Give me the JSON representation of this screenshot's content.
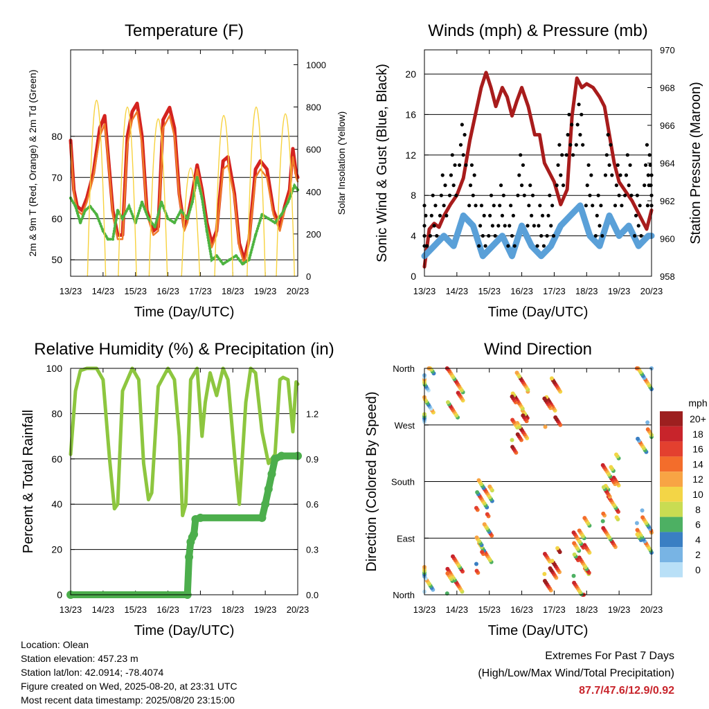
{
  "figure": {
    "time_ticks": [
      "13/23",
      "14/23",
      "15/23",
      "16/23",
      "17/23",
      "18/23",
      "19/23",
      "20/23"
    ],
    "xlabel": "Time (Day/UTC)"
  },
  "chart_data": [
    {
      "id": "temperature",
      "type": "line",
      "title": "Temperature (F)",
      "ylabel_left": "2m & 9m T (Red, Orange) & 2m Td (Green)",
      "ylabel_right": "Solar Insolation (Yellow)",
      "ylim_left": [
        46,
        101
      ],
      "ylim_right": [
        0,
        1070
      ],
      "yticks_left": [
        50,
        60,
        70,
        80
      ],
      "yticks_right": [
        0,
        200,
        400,
        600,
        800,
        1000
      ],
      "grid_left": [
        50,
        60,
        70,
        80
      ],
      "series": [
        {
          "color": "#d4231f",
          "axis": "left",
          "style": "thick",
          "x": [
            0,
            0.1,
            0.2,
            0.35,
            0.5,
            0.7,
            0.9,
            1.05,
            1.15,
            1.3,
            1.45,
            1.6,
            1.75,
            1.9,
            2.05,
            2.2,
            2.35,
            2.55,
            2.7,
            2.85,
            3.05,
            3.2,
            3.35,
            3.5,
            3.6,
            3.75,
            3.9,
            4.05,
            4.2,
            4.35,
            4.5,
            4.7,
            4.85,
            5.05,
            5.2,
            5.35,
            5.5,
            5.7,
            5.85,
            6.05,
            6.25,
            6.45,
            6.6,
            6.75,
            6.85,
            6.95,
            7.0
          ],
          "y": [
            79,
            67,
            63,
            62,
            65,
            71,
            82,
            85,
            76,
            62,
            56,
            56,
            80,
            86,
            88,
            80,
            62,
            57,
            58,
            84,
            87,
            82,
            66,
            58,
            60,
            66,
            73,
            67,
            59,
            54,
            57,
            74,
            75,
            66,
            54,
            50,
            55,
            72,
            74,
            72,
            62,
            58,
            63,
            67,
            77,
            71,
            70
          ]
        },
        {
          "color": "#f07a2a",
          "axis": "left",
          "style": "thin",
          "x": [
            0,
            0.1,
            0.2,
            0.35,
            0.5,
            0.7,
            0.9,
            1.05,
            1.15,
            1.3,
            1.45,
            1.6,
            1.75,
            1.9,
            2.05,
            2.2,
            2.35,
            2.55,
            2.7,
            2.85,
            3.05,
            3.2,
            3.35,
            3.5,
            3.6,
            3.75,
            3.9,
            4.05,
            4.2,
            4.35,
            4.5,
            4.7,
            4.85,
            5.05,
            5.2,
            5.35,
            5.5,
            5.7,
            5.85,
            6.05,
            6.25,
            6.45,
            6.6,
            6.75,
            6.85,
            6.95,
            7.0
          ],
          "y": [
            78,
            66,
            62,
            61,
            64,
            70,
            80,
            83,
            75,
            61,
            55,
            55,
            78,
            84,
            86,
            78,
            61,
            56,
            57,
            82,
            85,
            80,
            65,
            57,
            59,
            65,
            72,
            66,
            58,
            53,
            56,
            72,
            73,
            65,
            53,
            49,
            54,
            70,
            72,
            70,
            61,
            57,
            62,
            66,
            75,
            70,
            69
          ]
        },
        {
          "color": "#4db340",
          "axis": "left",
          "style": "dots",
          "x": [
            0,
            0.15,
            0.3,
            0.45,
            0.6,
            0.8,
            1.0,
            1.15,
            1.3,
            1.45,
            1.6,
            1.8,
            2.0,
            2.2,
            2.4,
            2.6,
            2.8,
            3.0,
            3.2,
            3.4,
            3.6,
            3.75,
            3.9,
            4.05,
            4.2,
            4.35,
            4.5,
            4.7,
            4.9,
            5.1,
            5.3,
            5.5,
            5.7,
            5.9,
            6.1,
            6.3,
            6.5,
            6.7,
            6.9,
            7.0
          ],
          "y": [
            65,
            63,
            59,
            62,
            63,
            61,
            57,
            55,
            55,
            62,
            60,
            63,
            59,
            64,
            60,
            58,
            64,
            60,
            59,
            62,
            60,
            64,
            70,
            65,
            57,
            50,
            51,
            49,
            50,
            51,
            49,
            50,
            56,
            61,
            60,
            59,
            61,
            64,
            68,
            67
          ]
        },
        {
          "color": "#f7d23e",
          "axis": "right",
          "style": "spikes",
          "peaks": [
            [
              0.8,
              1040
            ],
            [
              1.75,
              1000
            ],
            [
              2.7,
              930
            ],
            [
              3.7,
              640
            ],
            [
              4.72,
              950
            ],
            [
              5.72,
              1000
            ],
            [
              6.62,
              960
            ]
          ]
        }
      ]
    },
    {
      "id": "winds",
      "type": "line",
      "title": "Winds (mph) & Pressure (mb)",
      "ylabel_left": "Sonic Wind & Gust (Blue, Black)",
      "ylabel_right": "Station Pressure (Maroon)",
      "ylim_left": [
        0,
        22.4
      ],
      "ylim_right": [
        958,
        970
      ],
      "yticks_left": [
        0,
        4,
        8,
        12,
        16,
        20
      ],
      "yticks_right": [
        958,
        960,
        962,
        964,
        966,
        968,
        970
      ],
      "grid_left": [
        4,
        8,
        12,
        16,
        20
      ],
      "series": [
        {
          "color": "#a81c1c",
          "axis": "right",
          "style": "thick",
          "x": [
            0,
            0.15,
            0.3,
            0.45,
            0.6,
            0.8,
            1.0,
            1.2,
            1.4,
            1.6,
            1.75,
            1.9,
            2.05,
            2.2,
            2.4,
            2.55,
            2.7,
            2.85,
            3.0,
            3.2,
            3.4,
            3.55,
            3.7,
            3.85,
            4.0,
            4.2,
            4.4,
            4.55,
            4.7,
            4.85,
            5.0,
            5.2,
            5.4,
            5.55,
            5.7,
            5.85,
            6.0,
            6.2,
            6.4,
            6.55,
            6.7,
            6.85,
            7.0
          ],
          "y": [
            958.5,
            960.5,
            960.8,
            960.6,
            961.2,
            961.8,
            962.3,
            963.2,
            965.2,
            966.8,
            968.0,
            968.8,
            968.0,
            967.0,
            968.0,
            967.5,
            966.5,
            967.3,
            968.0,
            967.0,
            965.5,
            965.5,
            964.0,
            963.5,
            963.0,
            961.8,
            962.6,
            966.5,
            968.5,
            968.0,
            968.2,
            968.0,
            967.5,
            967.0,
            965.5,
            964.0,
            963.0,
            962.5,
            962.0,
            961.5,
            961.0,
            960.5,
            961.5
          ]
        },
        {
          "color": "#5aa0d8",
          "axis": "left",
          "style": "band",
          "x": [
            0,
            0.3,
            0.6,
            0.9,
            1.2,
            1.5,
            1.8,
            2.1,
            2.4,
            2.7,
            3.0,
            3.3,
            3.6,
            3.9,
            4.2,
            4.5,
            4.8,
            5.1,
            5.4,
            5.7,
            6.0,
            6.3,
            6.6,
            6.9,
            7.0
          ],
          "y": [
            2,
            3,
            4,
            3,
            6,
            5,
            2,
            3,
            4,
            2,
            5,
            3,
            2,
            3,
            5,
            6,
            7,
            4,
            3,
            6,
            4,
            5,
            3,
            4,
            4
          ]
        },
        {
          "color": "#000000",
          "axis": "left",
          "style": "scatter",
          "x": [
            0,
            0.3,
            0.6,
            0.9,
            1.2,
            1.5,
            1.8,
            2.1,
            2.4,
            2.7,
            3.0,
            3.3,
            3.6,
            3.9,
            4.2,
            4.5,
            4.8,
            5.1,
            5.4,
            5.7,
            6.0,
            6.3,
            6.6,
            6.9,
            7.0
          ],
          "y": [
            5,
            6,
            8,
            10,
            13,
            9,
            5,
            6,
            7,
            5,
            10,
            7,
            5,
            6,
            11,
            14,
            15,
            9,
            6,
            12,
            9,
            10,
            6,
            11,
            9
          ]
        }
      ]
    },
    {
      "id": "humidity",
      "type": "line",
      "title": "Relative Humidity (%) & Precipitation (in)",
      "ylabel_left": "Percent & Total Rainfall",
      "ylim_left": [
        0,
        100
      ],
      "ylim_right": [
        0,
        1.5
      ],
      "yticks_left": [
        0,
        20,
        40,
        60,
        80,
        100
      ],
      "yticks_right": [
        "0.0",
        "0.3",
        "0.6",
        "0.9",
        "1.2"
      ],
      "yticks_right_values": [
        0,
        0.3,
        0.6,
        0.9,
        1.2
      ],
      "grid_left": [
        20,
        40,
        60,
        80
      ],
      "series": [
        {
          "color": "#8dc63f",
          "axis": "left",
          "style": "thick",
          "x": [
            0,
            0.15,
            0.3,
            0.5,
            0.8,
            1.0,
            1.2,
            1.35,
            1.45,
            1.6,
            1.9,
            2.1,
            2.25,
            2.4,
            2.5,
            2.7,
            3.0,
            3.2,
            3.35,
            3.45,
            3.55,
            3.7,
            3.9,
            4.05,
            4.15,
            4.3,
            4.5,
            4.7,
            4.85,
            5.05,
            5.2,
            5.4,
            5.55,
            5.7,
            5.9,
            6.1,
            6.3,
            6.45,
            6.55,
            6.7,
            6.85,
            6.95,
            7.0
          ],
          "y": [
            62,
            90,
            99,
            100,
            100,
            95,
            60,
            38,
            40,
            90,
            100,
            95,
            58,
            42,
            45,
            92,
            100,
            95,
            70,
            35,
            40,
            95,
            100,
            70,
            85,
            98,
            88,
            100,
            95,
            62,
            40,
            85,
            100,
            98,
            72,
            58,
            62,
            95,
            96,
            95,
            72,
            94,
            93
          ]
        },
        {
          "color": "#4cae4c",
          "axis": "right",
          "style": "steps-dots",
          "x": [
            0,
            3.6,
            3.65,
            3.7,
            3.75,
            3.8,
            3.85,
            4.0,
            5.9,
            6.0,
            6.1,
            6.2,
            6.3,
            6.5,
            7.0
          ],
          "y": [
            0,
            0,
            0.25,
            0.35,
            0.38,
            0.4,
            0.5,
            0.51,
            0.51,
            0.6,
            0.7,
            0.8,
            0.9,
            0.92,
            0.92
          ]
        }
      ]
    },
    {
      "id": "direction",
      "type": "scatter",
      "title": "Wind Direction",
      "ylabel_left": "Direction (Colored By Speed)",
      "yticks_left": [
        "North",
        "East",
        "South",
        "West",
        "North"
      ],
      "yticks_values": [
        0,
        90,
        180,
        270,
        360
      ],
      "ylim": [
        0,
        360
      ],
      "legend_title": "mph",
      "legend_labels": [
        "20+",
        "18",
        "16",
        "14",
        "12",
        "10",
        "8",
        "6",
        "4",
        "2",
        "0"
      ],
      "legend_colors": [
        "#9d1f1f",
        "#c8242b",
        "#e3402f",
        "#f36d2b",
        "#f8a444",
        "#f3d546",
        "#c9dc52",
        "#4db063",
        "#3a7fc3",
        "#78b4e4",
        "#b9e0f7"
      ],
      "clusters": [
        {
          "x": 0.05,
          "dirs": [
            30,
            300,
            350
          ],
          "speed": 3
        },
        {
          "x": 0.95,
          "dirs": [
            20,
            40,
            300,
            340
          ],
          "speed": 6
        },
        {
          "x": 1.85,
          "dirs": [
            60,
            90,
            150,
            160
          ],
          "speed": 5
        },
        {
          "x": 2.95,
          "dirs": [
            250,
            270,
            300,
            330
          ],
          "speed": 7
        },
        {
          "x": 3.95,
          "dirs": [
            30,
            50,
            290,
            320
          ],
          "speed": 8
        },
        {
          "x": 4.85,
          "dirs": [
            20,
            60,
            80,
            100
          ],
          "speed": 6
        },
        {
          "x": 5.75,
          "dirs": [
            100,
            150,
            180,
            200
          ],
          "speed": 6
        },
        {
          "x": 6.8,
          "dirs": [
            90,
            110,
            250,
            350
          ],
          "speed": 4
        }
      ]
    }
  ],
  "station_info": [
    "Location: Olean",
    "Station elevation: 457.23 m",
    "Station lat/lon: 42.0914; -78.4074",
    "Figure created on Wed, 2025-08-20, at 23:31 UTC",
    "Most recent data timestamp: 2025/08/20 23:15:00"
  ],
  "extremes": {
    "title": "Extremes For Past 7 Days",
    "subtitle": "(High/Low/Max Wind/Total Precipitation)",
    "values": "87.7/47.6/12.9/0.92"
  }
}
